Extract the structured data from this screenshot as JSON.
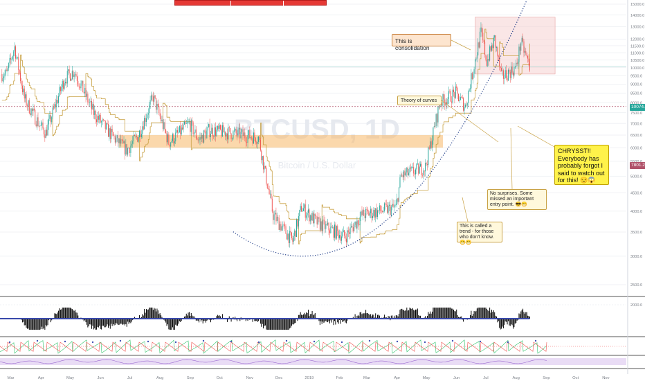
{
  "colors": {
    "up": "#26a69a",
    "down": "#ef5350",
    "trail": "#c9a246",
    "curve": "#1f3c88",
    "zone": "#f7b868",
    "box": "#f4c7c7",
    "watermark": "#e6e9ef",
    "axis_text": "#7a7f87",
    "current_tag": "#26a69a",
    "level_tag": "#b0526a",
    "banner": "#e53935"
  },
  "watermark": {
    "symbol": "BTCUSD, 1D",
    "subtitle": "Bitcoin / U.S. Dollar"
  },
  "tags": {
    "current_price": "10074.0",
    "level_price": "7801.2"
  },
  "banner": {
    "shown": true
  },
  "annotations": {
    "consolidation": "This is consolidation",
    "curves": "Theory of curves",
    "trend": "This is called a trend - for those who don't know. 😁😁",
    "no_surprises": "No surprises. Some missed an important entry point. 😎😁",
    "chrysst": "CHRYSST!! Everybody has probably forgot I said to watch out for this! 😒😱"
  },
  "chart_data": {
    "type": "candlestick",
    "symbol": "BTCUSD",
    "interval": "1D",
    "y_axis": {
      "scale": "log",
      "ticks": [
        15000,
        14000,
        13000,
        12000,
        11500,
        11000,
        10500,
        10000,
        9500,
        9000,
        8500,
        8000,
        7500,
        7000,
        6500,
        6000,
        5500,
        5000,
        4500,
        4000,
        3500,
        3000,
        2500
      ],
      "tick_labels": [
        "15000.0",
        "14000.0",
        "13000.0",
        "12000.0",
        "11500.0",
        "11000.0",
        "10500.0",
        "10000.0",
        "9500.0",
        "9000.0",
        "8500.0",
        "8000.0",
        "7500.0",
        "7000.0",
        "6500.0",
        "6000.0",
        "5500.0",
        "5000.0",
        "4500.0",
        "4000.0",
        "3500.0",
        "3000.0",
        "2500.0"
      ]
    },
    "x_axis": {
      "labels": [
        "Mar",
        "Apr",
        "May",
        "Jun",
        "Jul",
        "Aug",
        "Sep",
        "Oct",
        "Nov",
        "Dec",
        "2019",
        "Feb",
        "Mar",
        "Apr",
        "May",
        "Jun",
        "Jul",
        "Aug",
        "Sep",
        "Oct",
        "Nov"
      ]
    },
    "price_path": [
      {
        "t": "2018-02-25",
        "p": 9600
      },
      {
        "t": "2018-03-05",
        "p": 11400
      },
      {
        "t": "2018-03-15",
        "p": 8200
      },
      {
        "t": "2018-03-31",
        "p": 6900
      },
      {
        "t": "2018-04-06",
        "p": 6600
      },
      {
        "t": "2018-04-25",
        "p": 9300
      },
      {
        "t": "2018-05-05",
        "p": 9800
      },
      {
        "t": "2018-05-25",
        "p": 7500
      },
      {
        "t": "2018-06-12",
        "p": 6500
      },
      {
        "t": "2018-06-28",
        "p": 5900
      },
      {
        "t": "2018-07-10",
        "p": 6500
      },
      {
        "t": "2018-07-25",
        "p": 8300
      },
      {
        "t": "2018-08-10",
        "p": 6200
      },
      {
        "t": "2018-08-31",
        "p": 7000
      },
      {
        "t": "2018-09-10",
        "p": 6300
      },
      {
        "t": "2018-09-20",
        "p": 6700
      },
      {
        "t": "2018-10-10",
        "p": 6600
      },
      {
        "t": "2018-11-10",
        "p": 6400
      },
      {
        "t": "2018-11-20",
        "p": 4600
      },
      {
        "t": "2018-11-25",
        "p": 3900
      },
      {
        "t": "2018-12-15",
        "p": 3300
      },
      {
        "t": "2018-12-24",
        "p": 4100
      },
      {
        "t": "2019-01-10",
        "p": 3700
      },
      {
        "t": "2019-02-07",
        "p": 3400
      },
      {
        "t": "2019-02-24",
        "p": 3900
      },
      {
        "t": "2019-03-31",
        "p": 4100
      },
      {
        "t": "2019-04-05",
        "p": 5000
      },
      {
        "t": "2019-04-30",
        "p": 5300
      },
      {
        "t": "2019-05-15",
        "p": 8000
      },
      {
        "t": "2019-05-31",
        "p": 8500
      },
      {
        "t": "2019-06-10",
        "p": 7800
      },
      {
        "t": "2019-06-26",
        "p": 12500
      },
      {
        "t": "2019-07-02",
        "p": 10400
      },
      {
        "t": "2019-07-10",
        "p": 12000
      },
      {
        "t": "2019-07-17",
        "p": 9400
      },
      {
        "t": "2019-08-01",
        "p": 10000
      },
      {
        "t": "2019-08-06",
        "p": 11800
      },
      {
        "t": "2019-08-15",
        "p": 10074
      }
    ],
    "volume_profile_zone": {
      "from": "2018-06-20",
      "to": "2019-05-18",
      "low": 6000,
      "high": 6500
    },
    "consolidation_box": {
      "from": "2019-06-20",
      "to": "2019-09-10",
      "low": 9600,
      "high": 13800
    },
    "curve": {
      "type": "parabolic",
      "bottom_date": "2018-12-25",
      "bottom_price": 3000
    },
    "horizontal_levels": [
      10074,
      7801.2
    ],
    "indicators": [
      "histogram oscillator",
      "sawtooth oscillator",
      "rsi band"
    ]
  }
}
